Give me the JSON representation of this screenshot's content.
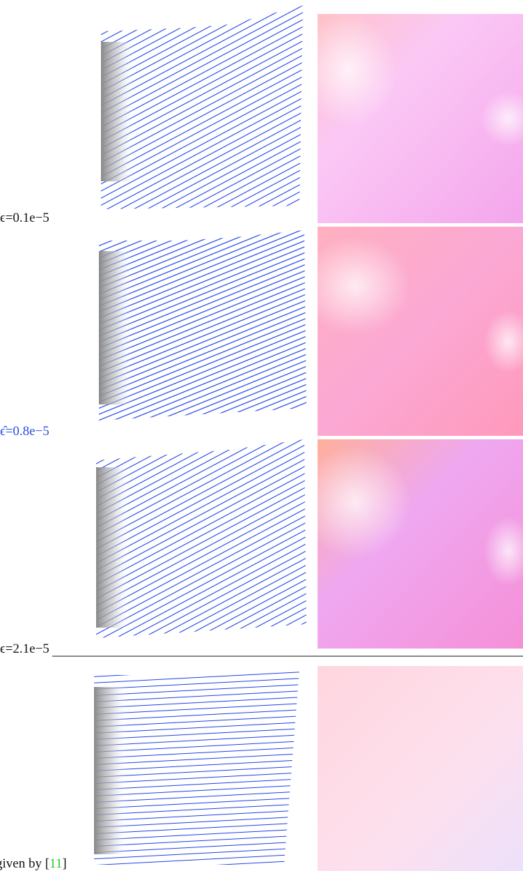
{
  "rows": [
    {
      "label": "ϵ=0.1e−5"
    },
    {
      "label": "ϵ̂=0.8e−5"
    },
    {
      "label": "ϵ=2.1e−5"
    }
  ],
  "caption": {
    "text": "given by [",
    "ref": "11",
    "end": "]"
  }
}
